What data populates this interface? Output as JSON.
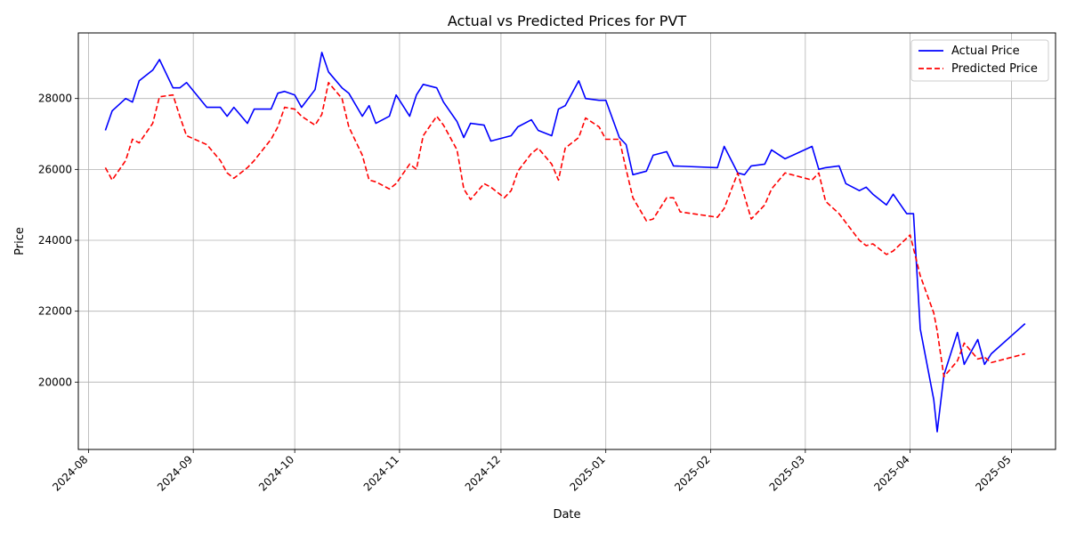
{
  "chart_data": {
    "type": "line",
    "title": "Actual vs Predicted Prices for PVT",
    "xlabel": "Date",
    "ylabel": "Price",
    "xlim": [
      "2024-07-29",
      "2025-05-14"
    ],
    "ylim": [
      18100,
      29850
    ],
    "grid": true,
    "legend_position": "top-right",
    "x_ticks": [
      "2024-08",
      "2024-09",
      "2024-10",
      "2024-11",
      "2024-12",
      "2025-01",
      "2025-02",
      "2025-03",
      "2025-04",
      "2025-05"
    ],
    "y_ticks": [
      20000,
      22000,
      24000,
      26000,
      28000
    ],
    "series": [
      {
        "name": "Actual Price",
        "color": "#0000ff",
        "style": "solid",
        "points": [
          [
            "2024-08-06",
            27100
          ],
          [
            "2024-08-08",
            27650
          ],
          [
            "2024-08-12",
            28000
          ],
          [
            "2024-08-14",
            27900
          ],
          [
            "2024-08-16",
            28500
          ],
          [
            "2024-08-20",
            28800
          ],
          [
            "2024-08-22",
            29100
          ],
          [
            "2024-08-26",
            28300
          ],
          [
            "2024-08-28",
            28300
          ],
          [
            "2024-08-30",
            28450
          ],
          [
            "2024-09-05",
            27750
          ],
          [
            "2024-09-09",
            27750
          ],
          [
            "2024-09-11",
            27500
          ],
          [
            "2024-09-13",
            27750
          ],
          [
            "2024-09-17",
            27300
          ],
          [
            "2024-09-19",
            27700
          ],
          [
            "2024-09-24",
            27700
          ],
          [
            "2024-09-26",
            28150
          ],
          [
            "2024-09-28",
            28200
          ],
          [
            "2024-10-01",
            28100
          ],
          [
            "2024-10-03",
            27750
          ],
          [
            "2024-10-07",
            28250
          ],
          [
            "2024-10-09",
            29300
          ],
          [
            "2024-10-11",
            28750
          ],
          [
            "2024-10-15",
            28300
          ],
          [
            "2024-10-17",
            28150
          ],
          [
            "2024-10-21",
            27500
          ],
          [
            "2024-10-23",
            27800
          ],
          [
            "2024-10-25",
            27300
          ],
          [
            "2024-10-29",
            27500
          ],
          [
            "2024-10-31",
            28100
          ],
          [
            "2024-11-04",
            27500
          ],
          [
            "2024-11-06",
            28100
          ],
          [
            "2024-11-08",
            28400
          ],
          [
            "2024-11-12",
            28300
          ],
          [
            "2024-11-14",
            27900
          ],
          [
            "2024-11-18",
            27350
          ],
          [
            "2024-11-20",
            26900
          ],
          [
            "2024-11-22",
            27300
          ],
          [
            "2024-11-26",
            27250
          ],
          [
            "2024-11-28",
            26800
          ],
          [
            "2024-12-04",
            26950
          ],
          [
            "2024-12-06",
            27200
          ],
          [
            "2024-12-10",
            27400
          ],
          [
            "2024-12-12",
            27100
          ],
          [
            "2024-12-16",
            26950
          ],
          [
            "2024-12-18",
            27700
          ],
          [
            "2024-12-20",
            27800
          ],
          [
            "2024-12-24",
            28500
          ],
          [
            "2024-12-26",
            28000
          ],
          [
            "2024-12-30",
            27950
          ],
          [
            "2025-01-01",
            27950
          ],
          [
            "2025-01-05",
            26900
          ],
          [
            "2025-01-07",
            26700
          ],
          [
            "2025-01-09",
            25850
          ],
          [
            "2025-01-13",
            25950
          ],
          [
            "2025-01-15",
            26400
          ],
          [
            "2025-01-19",
            26500
          ],
          [
            "2025-01-21",
            26100
          ],
          [
            "2025-02-03",
            26050
          ],
          [
            "2025-02-05",
            26650
          ],
          [
            "2025-02-09",
            25900
          ],
          [
            "2025-02-11",
            25850
          ],
          [
            "2025-02-13",
            26100
          ],
          [
            "2025-02-17",
            26150
          ],
          [
            "2025-02-19",
            26550
          ],
          [
            "2025-02-23",
            26300
          ],
          [
            "2025-03-03",
            26650
          ],
          [
            "2025-03-05",
            26000
          ],
          [
            "2025-03-07",
            26050
          ],
          [
            "2025-03-11",
            26100
          ],
          [
            "2025-03-13",
            25600
          ],
          [
            "2025-03-17",
            25400
          ],
          [
            "2025-03-19",
            25500
          ],
          [
            "2025-03-21",
            25300
          ],
          [
            "2025-03-25",
            25000
          ],
          [
            "2025-03-27",
            25300
          ],
          [
            "2025-03-31",
            24750
          ],
          [
            "2025-04-02",
            24750
          ],
          [
            "2025-04-04",
            21500
          ],
          [
            "2025-04-08",
            19500
          ],
          [
            "2025-04-09",
            18600
          ],
          [
            "2025-04-11",
            20200
          ],
          [
            "2025-04-15",
            21400
          ],
          [
            "2025-04-17",
            20500
          ],
          [
            "2025-04-21",
            21200
          ],
          [
            "2025-04-23",
            20500
          ],
          [
            "2025-04-25",
            20800
          ],
          [
            "2025-05-05",
            21650
          ]
        ]
      },
      {
        "name": "Predicted Price",
        "color": "#ff0000",
        "style": "dashed",
        "points": [
          [
            "2024-08-06",
            26050
          ],
          [
            "2024-08-08",
            25700
          ],
          [
            "2024-08-12",
            26250
          ],
          [
            "2024-08-14",
            26850
          ],
          [
            "2024-08-16",
            26750
          ],
          [
            "2024-08-20",
            27300
          ],
          [
            "2024-08-22",
            28050
          ],
          [
            "2024-08-26",
            28100
          ],
          [
            "2024-08-28",
            27500
          ],
          [
            "2024-08-30",
            26950
          ],
          [
            "2024-09-05",
            26700
          ],
          [
            "2024-09-09",
            26250
          ],
          [
            "2024-09-11",
            25900
          ],
          [
            "2024-09-13",
            25750
          ],
          [
            "2024-09-17",
            26050
          ],
          [
            "2024-09-19",
            26250
          ],
          [
            "2024-09-24",
            26850
          ],
          [
            "2024-09-26",
            27200
          ],
          [
            "2024-09-28",
            27750
          ],
          [
            "2024-10-01",
            27700
          ],
          [
            "2024-10-03",
            27500
          ],
          [
            "2024-10-07",
            27250
          ],
          [
            "2024-10-09",
            27550
          ],
          [
            "2024-10-11",
            28450
          ],
          [
            "2024-10-15",
            28000
          ],
          [
            "2024-10-17",
            27200
          ],
          [
            "2024-10-21",
            26400
          ],
          [
            "2024-10-23",
            25700
          ],
          [
            "2024-10-25",
            25650
          ],
          [
            "2024-10-29",
            25450
          ],
          [
            "2024-10-31",
            25600
          ],
          [
            "2024-11-04",
            26150
          ],
          [
            "2024-11-06",
            26000
          ],
          [
            "2024-11-08",
            26950
          ],
          [
            "2024-11-12",
            27500
          ],
          [
            "2024-11-14",
            27250
          ],
          [
            "2024-11-18",
            26550
          ],
          [
            "2024-11-20",
            25450
          ],
          [
            "2024-11-22",
            25150
          ],
          [
            "2024-11-26",
            25600
          ],
          [
            "2024-11-28",
            25500
          ],
          [
            "2024-12-02",
            25200
          ],
          [
            "2024-12-04",
            25400
          ],
          [
            "2024-12-06",
            25950
          ],
          [
            "2024-12-10",
            26450
          ],
          [
            "2024-12-12",
            26600
          ],
          [
            "2024-12-16",
            26150
          ],
          [
            "2024-12-18",
            25700
          ],
          [
            "2024-12-20",
            26600
          ],
          [
            "2024-12-24",
            26900
          ],
          [
            "2024-12-26",
            27450
          ],
          [
            "2024-12-30",
            27200
          ],
          [
            "2025-01-01",
            26850
          ],
          [
            "2025-01-05",
            26850
          ],
          [
            "2025-01-07",
            26000
          ],
          [
            "2025-01-09",
            25200
          ],
          [
            "2025-01-13",
            24550
          ],
          [
            "2025-01-15",
            24600
          ],
          [
            "2025-01-19",
            25200
          ],
          [
            "2025-01-21",
            25200
          ],
          [
            "2025-01-23",
            24800
          ],
          [
            "2025-02-03",
            24650
          ],
          [
            "2025-02-05",
            24900
          ],
          [
            "2025-02-09",
            25900
          ],
          [
            "2025-02-13",
            24600
          ],
          [
            "2025-02-17",
            25000
          ],
          [
            "2025-02-19",
            25450
          ],
          [
            "2025-02-23",
            25900
          ],
          [
            "2025-03-03",
            25700
          ],
          [
            "2025-03-05",
            25900
          ],
          [
            "2025-03-07",
            25100
          ],
          [
            "2025-03-11",
            24750
          ],
          [
            "2025-03-13",
            24500
          ],
          [
            "2025-03-17",
            24000
          ],
          [
            "2025-03-19",
            23850
          ],
          [
            "2025-03-21",
            23900
          ],
          [
            "2025-03-25",
            23600
          ],
          [
            "2025-03-27",
            23700
          ],
          [
            "2025-04-01",
            24150
          ],
          [
            "2025-04-04",
            23000
          ],
          [
            "2025-04-08",
            21950
          ],
          [
            "2025-04-09",
            21450
          ],
          [
            "2025-04-11",
            20150
          ],
          [
            "2025-04-15",
            20600
          ],
          [
            "2025-04-17",
            21100
          ],
          [
            "2025-04-21",
            20650
          ],
          [
            "2025-04-23",
            20700
          ],
          [
            "2025-04-25",
            20550
          ],
          [
            "2025-05-05",
            20800
          ]
        ]
      }
    ]
  }
}
